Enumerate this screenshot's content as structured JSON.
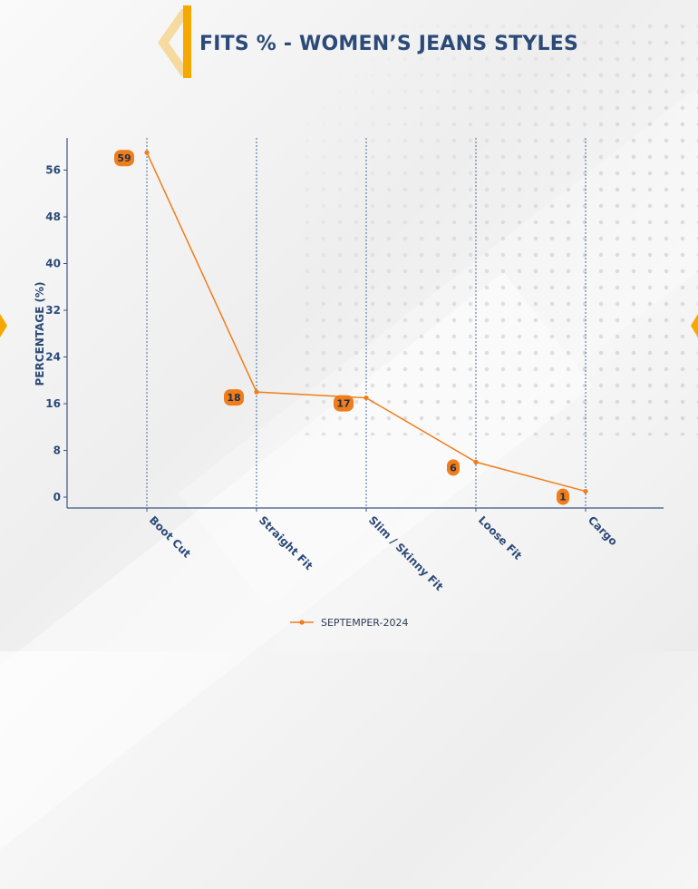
{
  "title": "FITS % - WOMEN’S JEANS STYLES",
  "accent_color": "#f5a800",
  "series_color": "#f07d1a",
  "text_color": "#2c4a78",
  "chart_data": {
    "type": "line",
    "title": "FITS % - WOMEN’S JEANS STYLES",
    "categories": [
      "Boot Cut",
      "Straight Fit",
      "Slim / Skinny Fit",
      "Loose Fit",
      "Cargo"
    ],
    "series": [
      {
        "name": "SEPTEMPER-2024",
        "values": [
          59,
          18,
          17,
          6,
          1
        ]
      }
    ],
    "data_labels": [
      "59",
      "18",
      "17",
      "6",
      "1"
    ],
    "xlabel": "",
    "ylabel": "PERCENTAGE (%)",
    "ylim": [
      -2,
      62
    ],
    "yticks": [
      0,
      8,
      16,
      24,
      32,
      40,
      48,
      56
    ],
    "grid": "vertical dashed",
    "legend": "bottom-center"
  }
}
